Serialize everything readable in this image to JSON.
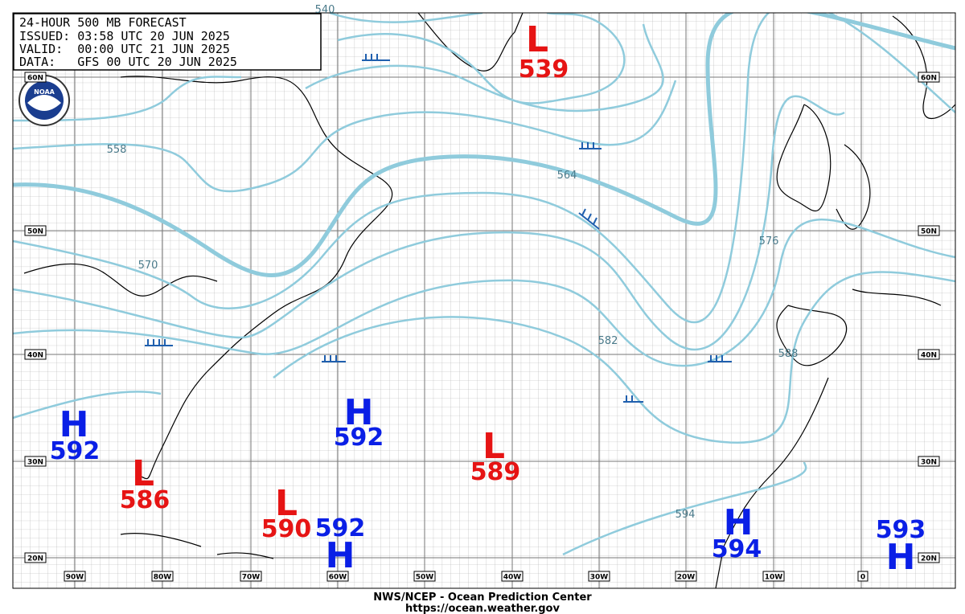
{
  "header": {
    "lines": [
      "24-HOUR 500 MB FORECAST",
      "ISSUED: 03:58 UTC 20 JUN 2025",
      "VALID:  00:00 UTC 21 JUN 2025",
      "DATA:   GFS 00 UTC 20 JUN 2025"
    ]
  },
  "logo": {
    "text": "NOAA"
  },
  "pressure_centers": [
    {
      "type": "L",
      "value": 539
    },
    {
      "type": "H",
      "value": 592
    },
    {
      "type": "L",
      "value": 586
    },
    {
      "type": "H",
      "value": 592
    },
    {
      "type": "L",
      "value": 589
    },
    {
      "type": "L",
      "value": 590
    },
    {
      "type": "H",
      "value": 592
    },
    {
      "type": "H",
      "value": 594
    },
    {
      "type": "H",
      "value": 593
    }
  ],
  "contour_labels": [
    540,
    558,
    564,
    570,
    576,
    582,
    588,
    594
  ],
  "latitude_labels": [
    "60N",
    "50N",
    "40N",
    "30N",
    "20N"
  ],
  "longitude_labels": [
    "90W",
    "80W",
    "70W",
    "60W",
    "50W",
    "40W",
    "30W",
    "20W",
    "10W",
    "0"
  ],
  "footer": {
    "agency": "NWS/NCEP - Ocean Prediction Center",
    "url": "https://ocean.weather.gov"
  }
}
